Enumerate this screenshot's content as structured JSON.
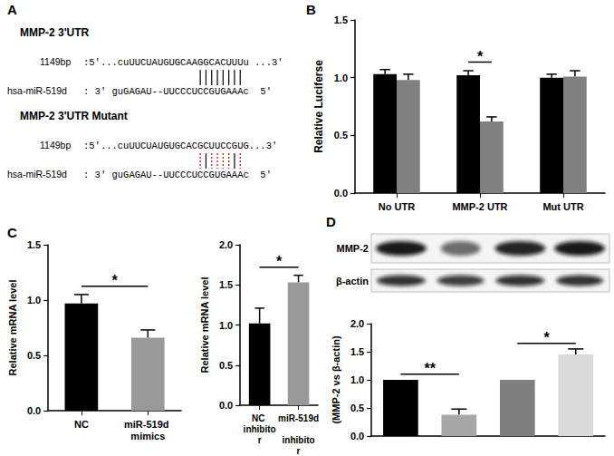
{
  "panel_labels": [
    "A",
    "B",
    "C",
    "D"
  ],
  "sequences": {
    "blocks": [
      {
        "title": "MMP-2 3'UTR",
        "rows": [
          {
            "label": "1149bp",
            "seq": ":5'...cuUUCUAUGUGCAAGGCACUUUu ...3'"
          },
          {
            "label": "hsa-miR-519d",
            "seq": ": 3' guGAGAU--UUCCCUCCGUGAAAc  5'"
          }
        ]
      },
      {
        "title": "MMP-2 3'UTR Mutant",
        "rows": [
          {
            "label": "1149bp",
            "seq": ":5'...cuUUCUAUGUGCACGCUUCCGUG...3'"
          },
          {
            "label": "hsa-miR-519d",
            "seq": ": 3' guGAGAU--UUCCCUCCGUGAAAc  5'"
          }
        ]
      }
    ]
  },
  "blot": {
    "rows": [
      "MMP-2",
      "β-actin"
    ]
  },
  "chart_data": [
    {
      "type": "bar",
      "y_label": "Relative Luciferse",
      "categories": [
        "No UTR",
        "MMP-2 UTR",
        "Mut UTR"
      ],
      "series": [
        {
          "color": "#000000",
          "values": [
            1.03,
            1.02,
            1.0
          ],
          "errors": [
            0.04,
            0.04,
            0.03
          ]
        },
        {
          "color": "#808080",
          "values": [
            0.98,
            0.62,
            1.01
          ],
          "errors": [
            0.05,
            0.04,
            0.05
          ]
        }
      ],
      "ylim": [
        0,
        1.5
      ],
      "yticks": [
        {
          "value": 0,
          "label": "0.0"
        },
        0.5,
        {
          "value": 1,
          "label": "1.0"
        },
        1.5
      ],
      "grid": false,
      "annotations": [
        {
          "text": "*",
          "category": 1
        }
      ]
    },
    {
      "type": "bar",
      "y_label": "Relative mRNA level",
      "categories": [
        "NC",
        "miR-519d mimics"
      ],
      "values": [
        0.97,
        0.66
      ],
      "errors": [
        0.08,
        0.07
      ],
      "colors": [
        "#000000",
        "#999999"
      ],
      "ylim": [
        0,
        1.5
      ],
      "yticks": [
        {
          "value": 0,
          "label": "0.0"
        },
        0.5,
        {
          "value": 1,
          "label": "1.0"
        },
        1.5
      ],
      "grid": false,
      "annotations": [
        {
          "text": "*",
          "between": [
            0,
            1
          ]
        }
      ]
    },
    {
      "type": "bar",
      "y_label": "Relative mRNA level",
      "categories": [
        "NC inhibitor",
        "miR-519d inhibitor"
      ],
      "values": [
        1.02,
        1.53
      ],
      "errors": [
        0.19,
        0.09
      ],
      "colors": [
        "#000000",
        "#999999"
      ],
      "ylim": [
        0,
        2
      ],
      "yticks": [
        {
          "value": 0,
          "label": "0.0"
        },
        0.5,
        {
          "value": 1,
          "label": "1.0"
        },
        1.5,
        {
          "value": 2,
          "label": "2.0"
        }
      ],
      "grid": false,
      "annotations": [
        {
          "text": "*",
          "between": [
            0,
            1
          ]
        }
      ]
    },
    {
      "type": "bar",
      "y_label": "(MMP-2 vs β-actin)",
      "categories": [
        null,
        null,
        null,
        null
      ],
      "values": [
        1.0,
        0.38,
        1.0,
        1.45
      ],
      "errors": [
        0,
        0.1,
        0,
        0.1
      ],
      "colors": [
        "#000000",
        "#a6a6a6",
        "#7f7f7f",
        "#d9d9d9"
      ],
      "ylim": [
        0,
        2
      ],
      "yticks": [
        {
          "value": 0,
          "label": "0.0"
        },
        0.5,
        {
          "value": 1,
          "label": "1.0"
        },
        1.5,
        {
          "value": 2,
          "label": "2.0"
        }
      ],
      "grid": false,
      "tick_labels": "y",
      "annotations": [
        {
          "text": "**",
          "between": [
            0,
            1
          ]
        },
        {
          "text": "*",
          "between": [
            2,
            3
          ]
        }
      ]
    }
  ]
}
